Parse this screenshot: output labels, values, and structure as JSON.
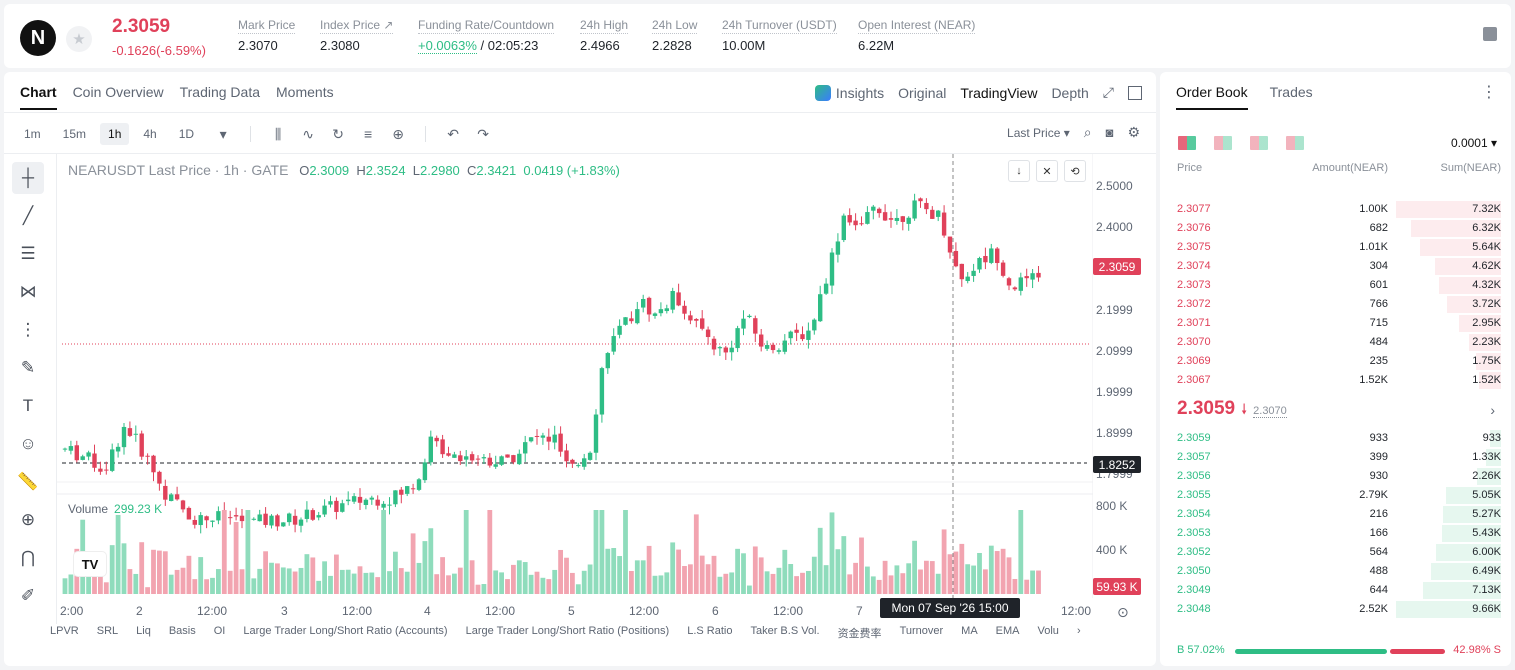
{
  "header": {
    "logo_letter": "N",
    "price": "2.3059",
    "change": "-0.1626(-6.59%)",
    "stats": [
      {
        "label": "Mark Price",
        "value": "2.3070"
      },
      {
        "label": "Index Price ↗",
        "value": "2.3080"
      },
      {
        "label": "Funding Rate/Countdown",
        "value_green": "+0.0063%",
        "value": " / 02:05:23"
      },
      {
        "label": "24h High",
        "value": "2.4966"
      },
      {
        "label": "24h Low",
        "value": "2.2828"
      },
      {
        "label": "24h Turnover (USDT)",
        "value": "10.00M"
      },
      {
        "label": "Open Interest (NEAR)",
        "value": "6.22M"
      }
    ]
  },
  "chart_tabs": [
    "Chart",
    "Coin Overview",
    "Trading Data",
    "Moments"
  ],
  "chart_views": [
    "Insights",
    "Original",
    "TradingView",
    "Depth"
  ],
  "timeframes": [
    "1m",
    "15m",
    "1h",
    "4h",
    "1D"
  ],
  "price_type": "Last Price",
  "legend": {
    "symbol": "NEARUSDT Last Price · 1h · GATE",
    "o": "2.3009",
    "h": "2.3524",
    "l": "2.2980",
    "c": "2.3421",
    "chg": "0.0419 (+1.83%)"
  },
  "volume_legend": {
    "label": "Volume",
    "value": "299.23 K"
  },
  "y_axis": [
    "2.5000",
    "2.4000",
    "2.1999",
    "2.0999",
    "1.9999",
    "1.8999",
    "1.7999"
  ],
  "vol_axis": [
    "800 K",
    "400 K"
  ],
  "last_price_tag": "2.3059",
  "cursor_price_tag": "1.8252",
  "vol_tag": "59.93 K",
  "x_axis": [
    "2:00",
    "2",
    "12:00",
    "3",
    "12:00",
    "4",
    "12:00",
    "5",
    "12:00",
    "6",
    "12:00",
    "7",
    "12:00"
  ],
  "cursor_date": "Mon 07 Sep '26   15:00",
  "indicators": [
    "LPVR",
    "SRL",
    "Liq",
    "Basis",
    "OI",
    "Large Trader Long/Short Ratio (Accounts)",
    "Large Trader Long/Short Ratio (Positions)",
    "L.S Ratio",
    "Taker B.S Vol.",
    "资金费率",
    "Turnover",
    "MA",
    "EMA",
    "Volu"
  ],
  "chart_data": {
    "type": "candlestick",
    "symbol": "NEARUSDT",
    "interval": "1h",
    "ylim": [
      1.78,
      2.52
    ],
    "last_ohlc": {
      "open": 2.3009,
      "high": 2.3524,
      "low": 2.298,
      "close": 2.3421
    }
  },
  "orderbook": {
    "tabs": [
      "Order Book",
      "Trades"
    ],
    "precision": "0.0001",
    "headers": [
      "Price",
      "Amount(NEAR)",
      "Sum(NEAR)"
    ],
    "asks": [
      {
        "price": "2.3077",
        "amount": "1.00K",
        "sum": "7.32K",
        "depth": 1.0
      },
      {
        "price": "2.3076",
        "amount": "682",
        "sum": "6.32K",
        "depth": 0.86
      },
      {
        "price": "2.3075",
        "amount": "1.01K",
        "sum": "5.64K",
        "depth": 0.77
      },
      {
        "price": "2.3074",
        "amount": "304",
        "sum": "4.62K",
        "depth": 0.63
      },
      {
        "price": "2.3073",
        "amount": "601",
        "sum": "4.32K",
        "depth": 0.59
      },
      {
        "price": "2.3072",
        "amount": "766",
        "sum": "3.72K",
        "depth": 0.51
      },
      {
        "price": "2.3071",
        "amount": "715",
        "sum": "2.95K",
        "depth": 0.4
      },
      {
        "price": "2.3070",
        "amount": "484",
        "sum": "2.23K",
        "depth": 0.3
      },
      {
        "price": "2.3069",
        "amount": "235",
        "sum": "1.75K",
        "depth": 0.24
      },
      {
        "price": "2.3067",
        "amount": "1.52K",
        "sum": "1.52K",
        "depth": 0.21
      }
    ],
    "mid_price": "2.3059",
    "mid_mark": "2.3070",
    "bids": [
      {
        "price": "2.3059",
        "amount": "933",
        "sum": "933",
        "depth": 0.1
      },
      {
        "price": "2.3057",
        "amount": "399",
        "sum": "1.33K",
        "depth": 0.14
      },
      {
        "price": "2.3056",
        "amount": "930",
        "sum": "2.26K",
        "depth": 0.23
      },
      {
        "price": "2.3055",
        "amount": "2.79K",
        "sum": "5.05K",
        "depth": 0.52
      },
      {
        "price": "2.3054",
        "amount": "216",
        "sum": "5.27K",
        "depth": 0.55
      },
      {
        "price": "2.3053",
        "amount": "166",
        "sum": "5.43K",
        "depth": 0.56
      },
      {
        "price": "2.3052",
        "amount": "564",
        "sum": "6.00K",
        "depth": 0.62
      },
      {
        "price": "2.3050",
        "amount": "488",
        "sum": "6.49K",
        "depth": 0.67
      },
      {
        "price": "2.3049",
        "amount": "644",
        "sum": "7.13K",
        "depth": 0.74
      },
      {
        "price": "2.3048",
        "amount": "2.52K",
        "sum": "9.66K",
        "depth": 1.0
      }
    ],
    "buy_ratio": "B 57.02%",
    "sell_ratio": "42.98% S"
  },
  "colors": {
    "up": "#2ebd85",
    "down": "#e0415a"
  }
}
